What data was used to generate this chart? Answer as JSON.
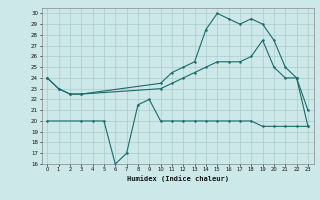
{
  "xlabel": "Humidex (Indice chaleur)",
  "ylabel": "",
  "xlim": [
    -0.5,
    23.5
  ],
  "ylim": [
    16,
    30.5
  ],
  "yticks": [
    16,
    17,
    18,
    19,
    20,
    21,
    22,
    23,
    24,
    25,
    26,
    27,
    28,
    29,
    30
  ],
  "xticks": [
    0,
    1,
    2,
    3,
    4,
    5,
    6,
    7,
    8,
    9,
    10,
    11,
    12,
    13,
    14,
    15,
    16,
    17,
    18,
    19,
    20,
    21,
    22,
    23
  ],
  "bg_color": "#cce8e8",
  "grid_color": "#aacccc",
  "line_color": "#1a6b6b",
  "line1_x": [
    0,
    1,
    2,
    3,
    10,
    11,
    12,
    13,
    14,
    15,
    16,
    17,
    18,
    19,
    20,
    21,
    22,
    23
  ],
  "line1_y": [
    24,
    23,
    22.5,
    22.5,
    23.5,
    24.5,
    25,
    25.5,
    28.5,
    30,
    29.5,
    29,
    29.5,
    29,
    27.5,
    25,
    24,
    21
  ],
  "line2_x": [
    0,
    1,
    2,
    3,
    10,
    11,
    12,
    13,
    14,
    15,
    16,
    17,
    18,
    19,
    20,
    21,
    22,
    23
  ],
  "line2_y": [
    24,
    23,
    22.5,
    22.5,
    23,
    23.5,
    24,
    24.5,
    25,
    25.5,
    25.5,
    25.5,
    26,
    27.5,
    25,
    24,
    24,
    19.5
  ],
  "line3_x": [
    0,
    3,
    4,
    5,
    6,
    7,
    8,
    9,
    10,
    11,
    12,
    13,
    14,
    15,
    16,
    17,
    18,
    19,
    20,
    21,
    22,
    23
  ],
  "line3_y": [
    20,
    20,
    20,
    20,
    16,
    17,
    21.5,
    22,
    20,
    20,
    20,
    20,
    20,
    20,
    20,
    20,
    20,
    19.5,
    19.5,
    19.5,
    19.5,
    19.5
  ]
}
